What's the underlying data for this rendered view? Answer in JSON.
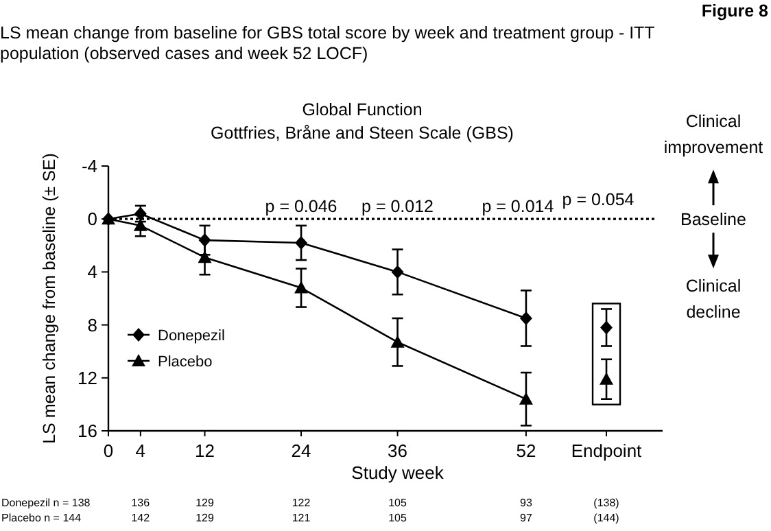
{
  "chart_data": {
    "type": "line",
    "title": "LS mean change from baseline for GBS total score by week and treatment group - ITT population (observed cases and week 52 LOCF)",
    "subtitle": "Global Function\nGottfries, Bråne and Steen Scale (GBS)",
    "xlabel": "Study week",
    "ylabel": "LS mean change from baseline (± SE)",
    "xlim": [
      0,
      69
    ],
    "xticks": [
      0,
      4,
      12,
      24,
      36,
      52,
      {
        "value": 62,
        "label": "Endpoint"
      }
    ],
    "ylim": [
      16,
      -4
    ],
    "yticks": [
      -4,
      0,
      4,
      8,
      12,
      16
    ],
    "grid": false,
    "legend": "bottom left",
    "line_style": "solid",
    "series": [
      {
        "name": "Donepezil",
        "color": "#000000",
        "marker": "diamond",
        "x": [
          0,
          4,
          12,
          24,
          36,
          52
        ],
        "values": [
          0,
          -0.4,
          1.6,
          1.8,
          4.0,
          7.5
        ],
        "errors": [
          null,
          0.6,
          1.1,
          1.3,
          1.7,
          2.1
        ]
      },
      {
        "name": "Placebo",
        "color": "#000000",
        "marker": "triangle",
        "x": [
          0,
          4,
          12,
          24,
          36,
          52
        ],
        "values": [
          0,
          0.5,
          2.9,
          5.2,
          9.3,
          13.6
        ],
        "errors": [
          null,
          0.8,
          1.3,
          1.45,
          1.8,
          2.0
        ]
      },
      {
        "type": "scatter",
        "color": "#000000",
        "marker": "diamond",
        "x": [
          62
        ],
        "values": [
          8.2
        ],
        "errors": [
          1.4
        ]
      },
      {
        "type": "scatter",
        "color": "#000000",
        "marker": "triangle",
        "x": [
          62
        ],
        "values": [
          12.1
        ],
        "errors": [
          1.5
        ]
      }
    ],
    "ref_lines": [
      {
        "axis": "y",
        "value": 0,
        "label": "Baseline",
        "line_style": "dotted"
      }
    ],
    "annotations": [
      "Figure 8",
      "Clinical improvement",
      "Clinical decline",
      "p = 0.046",
      "p = 0.012",
      "p = 0.014",
      "p = 0.054",
      "Donepezil n = 138",
      "136",
      "129",
      "122",
      "105",
      "93",
      "(138)",
      "Placebo n = 144",
      "142",
      "129",
      "121",
      "105",
      "97",
      "(144)"
    ]
  }
}
